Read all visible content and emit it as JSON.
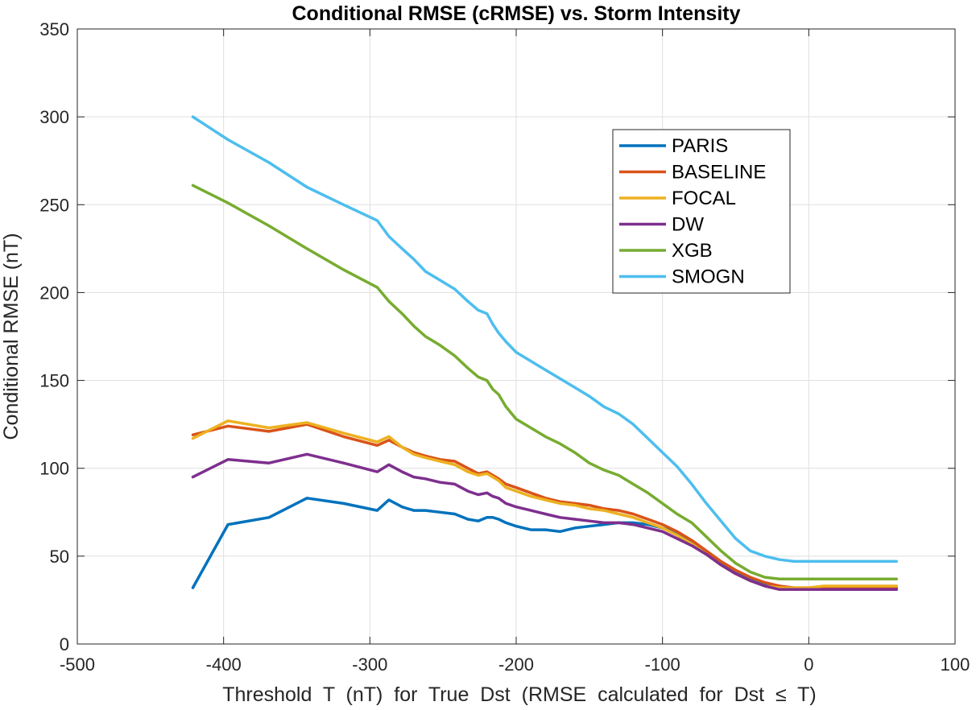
{
  "chart_data": {
    "type": "line",
    "title": "Conditional RMSE (cRMSE) vs. Storm Intensity",
    "xlabel": "Threshold  T  (nT)  for  True  Dst  (RMSE  calculated  for  Dst  ≤  T)",
    "ylabel": "Conditional RMSE (nT)",
    "xlim": [
      -500,
      100
    ],
    "ylim": [
      0,
      350
    ],
    "xticks": [
      -500,
      -400,
      -300,
      -200,
      -100,
      0,
      100
    ],
    "xtick_labels": [
      "-500",
      "-400",
      "-300",
      "-200",
      "-100",
      "0",
      "100"
    ],
    "yticks": [
      0,
      50,
      100,
      150,
      200,
      250,
      300,
      350
    ],
    "ytick_labels": [
      "0",
      "50",
      "100",
      "150",
      "200",
      "250",
      "300",
      "350"
    ],
    "grid": true,
    "legend_position": "upper-right",
    "x": [
      -421,
      -397,
      -369,
      -343,
      -318,
      -295,
      -287,
      -278,
      -270,
      -262,
      -252,
      -242,
      -233,
      -226,
      -220,
      -216,
      -212,
      -207,
      -200,
      -190,
      -180,
      -170,
      -160,
      -150,
      -140,
      -130,
      -120,
      -110,
      -100,
      -90,
      -80,
      -70,
      -60,
      -50,
      -40,
      -30,
      -20,
      -10,
      0,
      10,
      20,
      30,
      40,
      50,
      60
    ],
    "series": [
      {
        "name": "PARIS",
        "color": "#0072BD",
        "values": [
          32,
          68,
          72,
          83,
          80,
          76,
          82,
          78,
          76,
          76,
          75,
          74,
          71,
          70,
          72,
          72,
          71,
          69,
          67,
          65,
          65,
          64,
          66,
          67,
          68,
          69,
          69,
          68,
          66,
          63,
          58,
          52,
          46,
          41,
          37,
          34,
          32,
          31,
          31,
          31,
          31,
          31,
          31,
          31,
          31
        ]
      },
      {
        "name": "BASELINE",
        "color": "#D95319",
        "values": [
          119,
          124,
          121,
          125,
          118,
          113,
          116,
          112,
          109,
          107,
          105,
          104,
          100,
          97,
          98,
          96,
          94,
          91,
          89,
          86,
          83,
          81,
          80,
          79,
          77,
          76,
          74,
          71,
          68,
          64,
          59,
          53,
          47,
          42,
          38,
          35,
          33,
          32,
          32,
          32,
          32,
          32,
          32,
          32,
          32
        ]
      },
      {
        "name": "FOCAL",
        "color": "#EDB120",
        "values": [
          117,
          127,
          123,
          126,
          120,
          115,
          118,
          112,
          108,
          106,
          104,
          102,
          98,
          96,
          97,
          95,
          93,
          89,
          87,
          84,
          82,
          80,
          79,
          77,
          76,
          74,
          72,
          69,
          66,
          62,
          57,
          51,
          45,
          40,
          36,
          33,
          32,
          32,
          32,
          33,
          33,
          33,
          33,
          33,
          33
        ]
      },
      {
        "name": "DW",
        "color": "#7E2F8E",
        "values": [
          95,
          105,
          103,
          108,
          103,
          98,
          102,
          98,
          95,
          94,
          92,
          91,
          87,
          85,
          86,
          84,
          83,
          80,
          78,
          76,
          74,
          72,
          71,
          70,
          69,
          69,
          68,
          66,
          64,
          60,
          56,
          51,
          45,
          40,
          36,
          33,
          31,
          31,
          31,
          31,
          31,
          31,
          31,
          31,
          31
        ]
      },
      {
        "name": "XGB",
        "color": "#77AC30",
        "values": [
          261,
          251,
          238,
          225,
          213,
          203,
          195,
          188,
          181,
          175,
          170,
          164,
          157,
          152,
          150,
          145,
          142,
          135,
          128,
          123,
          118,
          114,
          109,
          103,
          99,
          96,
          91,
          86,
          80,
          74,
          69,
          61,
          53,
          46,
          41,
          38,
          37,
          37,
          37,
          37,
          37,
          37,
          37,
          37,
          37
        ]
      },
      {
        "name": "SMOGN",
        "color": "#4DBEEE",
        "values": [
          300,
          287,
          274,
          260,
          250,
          241,
          232,
          225,
          219,
          212,
          207,
          202,
          195,
          190,
          188,
          182,
          177,
          172,
          166,
          161,
          156,
          151,
          146,
          141,
          135,
          131,
          125,
          117,
          109,
          101,
          91,
          80,
          70,
          60,
          53,
          50,
          48,
          47,
          47,
          47,
          47,
          47,
          47,
          47,
          47
        ]
      }
    ]
  }
}
